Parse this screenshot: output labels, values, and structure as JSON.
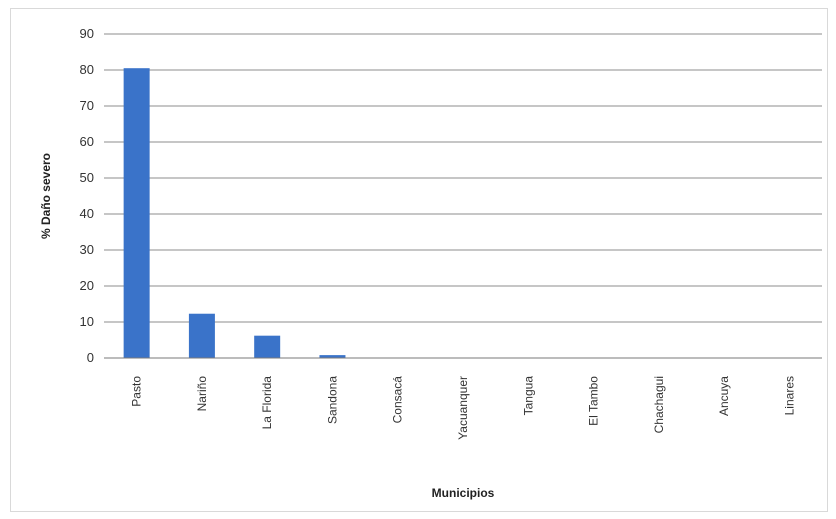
{
  "chart_data": {
    "type": "bar",
    "categories": [
      "Pasto",
      "Nariño",
      "La Florida",
      "Sandona",
      "Consacá",
      "Yacuanquer",
      "Tangua",
      "El Tambo",
      "Chachagui",
      "Ancuya",
      "Linares"
    ],
    "values": [
      80.5,
      12.3,
      6.2,
      0.8,
      0,
      0,
      0,
      0,
      0,
      0,
      0
    ],
    "title": "",
    "xlabel": "Municipios",
    "ylabel": "% Daño severo",
    "ylim": [
      0,
      90
    ],
    "yticks": [
      0,
      10,
      20,
      30,
      40,
      50,
      60,
      70,
      80,
      90
    ],
    "grid": true,
    "legend": "none",
    "bar_color": "#3a73c9",
    "grid_color": "#8c8c8c"
  }
}
